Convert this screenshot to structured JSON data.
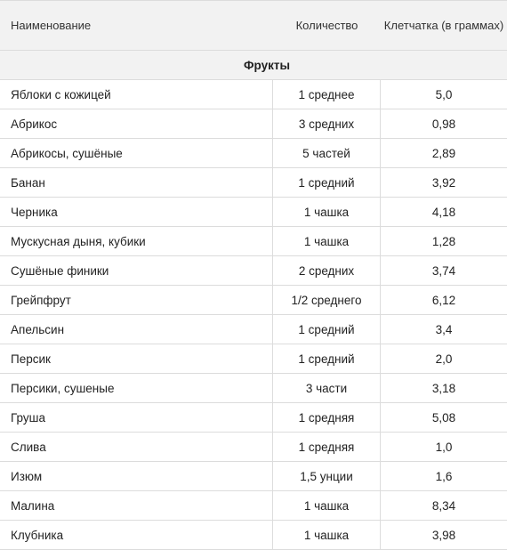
{
  "table": {
    "headers": {
      "name": "Наименование",
      "quantity": "Количество",
      "fiber": "Клетчатка (в граммах)"
    },
    "section": "Фрукты",
    "rows": [
      {
        "name": "Яблоки с кожицей",
        "quantity": "1 среднее",
        "fiber": "5,0"
      },
      {
        "name": "Абрикос",
        "quantity": "3 средних",
        "fiber": "0,98"
      },
      {
        "name": "Абрикосы, сушёные",
        "quantity": "5 частей",
        "fiber": "2,89"
      },
      {
        "name": "Банан",
        "quantity": "1 средний",
        "fiber": "3,92"
      },
      {
        "name": "Черника",
        "quantity": "1 чашка",
        "fiber": "4,18"
      },
      {
        "name": "Мускусная дыня, кубики",
        "quantity": "1 чашка",
        "fiber": "1,28"
      },
      {
        "name": "Сушёные финики",
        "quantity": "2 средних",
        "fiber": "3,74"
      },
      {
        "name": "Грейпфрут",
        "quantity": "1/2 среднего",
        "fiber": "6,12"
      },
      {
        "name": "Апельсин",
        "quantity": "1 средний",
        "fiber": "3,4"
      },
      {
        "name": "Персик",
        "quantity": "1 средний",
        "fiber": "2,0"
      },
      {
        "name": "Персики, сушеные",
        "quantity": "3 части",
        "fiber": "3,18"
      },
      {
        "name": "Груша",
        "quantity": "1 средняя",
        "fiber": "5,08"
      },
      {
        "name": "Слива",
        "quantity": "1 средняя",
        "fiber": "1,0"
      },
      {
        "name": "Изюм",
        "quantity": "1,5 унции",
        "fiber": "1,6"
      },
      {
        "name": "Малина",
        "quantity": "1 чашка",
        "fiber": "8,34"
      },
      {
        "name": "Клубника",
        "quantity": "1 чашка",
        "fiber": "3,98"
      }
    ]
  }
}
